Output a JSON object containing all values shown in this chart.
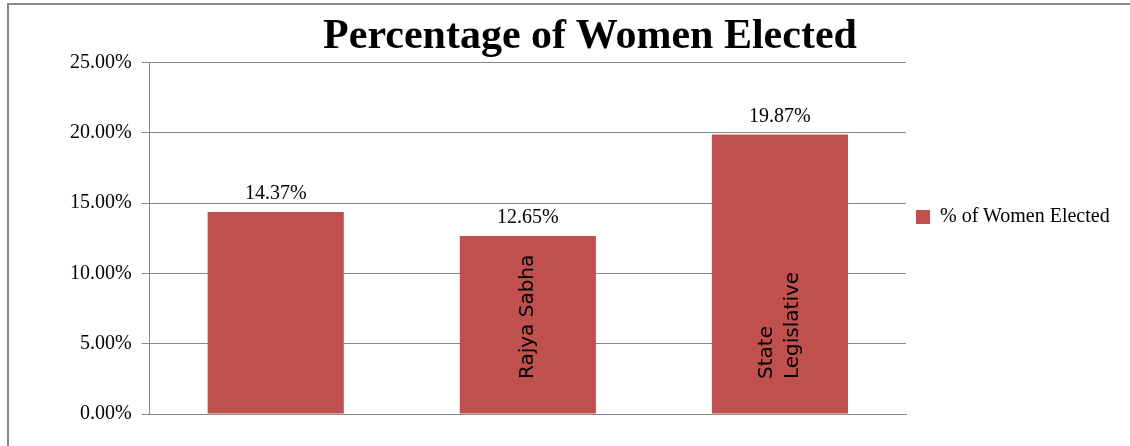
{
  "chart_data": {
    "type": "bar",
    "title": "Percentage of Women Elected",
    "categories": [
      null,
      "Rajya Sabha",
      "State Legislative"
    ],
    "series": [
      {
        "name": "% of Women Elected",
        "color": "#c0504d",
        "values": [
          14.37,
          12.65,
          19.87
        ],
        "value_labels": [
          "14.37%",
          "12.65%",
          "19.87%"
        ]
      }
    ],
    "ylim": [
      0,
      25
    ],
    "yticks": [
      {
        "value": 0,
        "label": "0.00%"
      },
      {
        "value": 5,
        "label": "5.00%"
      },
      {
        "value": 10,
        "label": "10.00%"
      },
      {
        "value": 15,
        "label": "15.00%"
      },
      {
        "value": 20,
        "label": "20.00%"
      },
      {
        "value": 25,
        "label": "25.00%"
      }
    ],
    "grid": "y",
    "legend": "right"
  }
}
